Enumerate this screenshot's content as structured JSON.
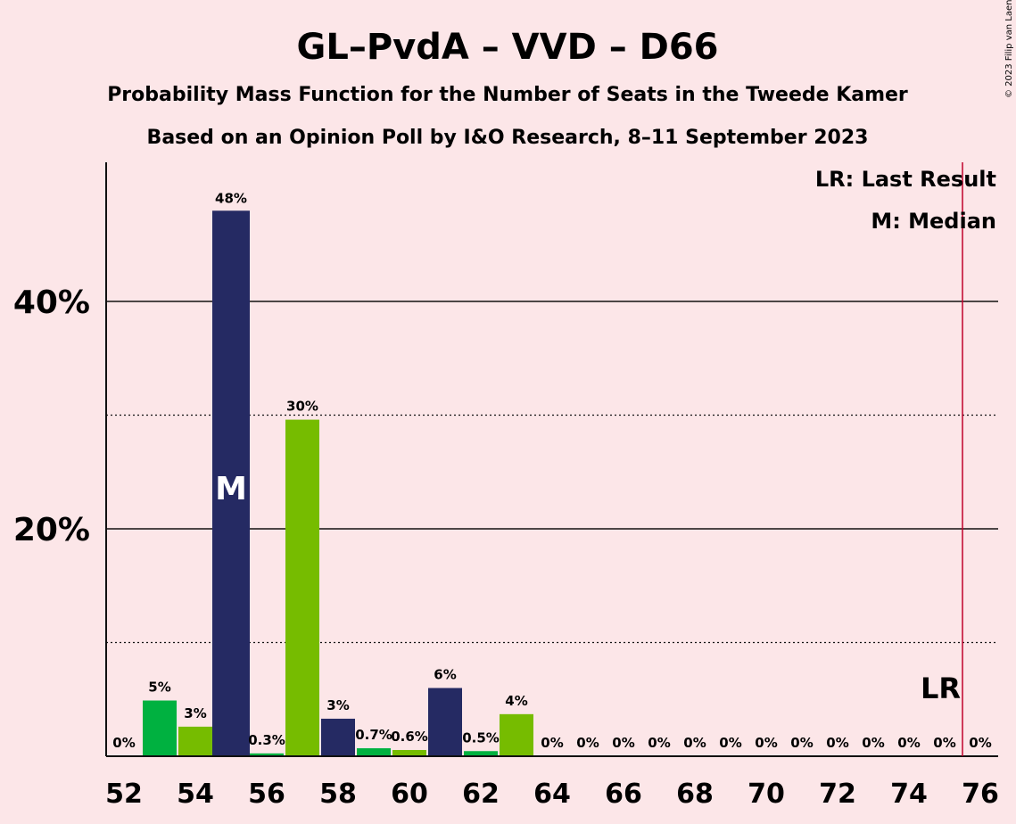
{
  "chart_data": {
    "type": "bar",
    "title": "GL–PvdA – VVD – D66",
    "subtitle_1": "Probability Mass Function for the Number of Seats in the Tweede Kamer",
    "subtitle_2": "Based on an Opinion Poll by I&O Research, 8–11 September 2023",
    "copyright": "© 2023 Filip van Laenen",
    "legend": [
      "LR: Last Result",
      "M: Median"
    ],
    "legend_placement": "top-right",
    "ylim": [
      0,
      52
    ],
    "yticks": [
      {
        "value": 20,
        "label": "20%"
      },
      {
        "value": 40,
        "label": "40%"
      }
    ],
    "minor_gridlines": [
      10,
      30
    ],
    "xticks": [
      "52",
      "54",
      "56",
      "58",
      "60",
      "62",
      "64",
      "66",
      "68",
      "70",
      "72",
      "74",
      "76"
    ],
    "seats": [
      52,
      53,
      54,
      55,
      56,
      57,
      58,
      59,
      60,
      61,
      62,
      63,
      64,
      65,
      66,
      67,
      68,
      69,
      70,
      71,
      72,
      73,
      74,
      75,
      76
    ],
    "values": [
      0,
      5,
      3,
      48,
      0.3,
      30,
      3,
      0.7,
      0.6,
      6,
      0.5,
      4,
      0,
      0,
      0,
      0,
      0,
      0,
      0,
      0,
      0,
      0,
      0,
      0,
      0
    ],
    "plot_values": [
      0,
      4.9,
      2.6,
      47.9,
      0.25,
      29.6,
      3.3,
      0.7,
      0.55,
      6.0,
      0.45,
      3.7,
      0,
      0,
      0,
      0,
      0,
      0,
      0,
      0,
      0,
      0,
      0,
      0,
      0
    ],
    "labels": [
      "0%",
      "5%",
      "3%",
      "48%",
      "0.3%",
      "30%",
      "3%",
      "0.7%",
      "0.6%",
      "6%",
      "0.5%",
      "4%",
      "0%",
      "0%",
      "0%",
      "0%",
      "0%",
      "0%",
      "0%",
      "0%",
      "0%",
      "0%",
      "0%",
      "0%",
      "0%"
    ],
    "median_seat": 55,
    "median_label": "M",
    "last_result_seat": 75.5,
    "last_result_label": "LR",
    "colors": {
      "background": "#fce6e8",
      "gl_pvda": "#00b140",
      "d66": "#76bc00",
      "vvd": "#252a63",
      "last_result_line": "#c0002a"
    },
    "bar_colors": [
      "#00b140",
      "#00b140",
      "#76bc00",
      "#252a63",
      "#00b140",
      "#76bc00",
      "#252a63",
      "#00b140",
      "#76bc00",
      "#252a63",
      "#00b140",
      "#76bc00",
      "#00b140",
      "#76bc00",
      "#252a63",
      "#00b140",
      "#76bc00",
      "#252a63",
      "#00b140",
      "#76bc00",
      "#252a63",
      "#00b140",
      "#76bc00",
      "#252a63",
      "#00b140"
    ]
  }
}
